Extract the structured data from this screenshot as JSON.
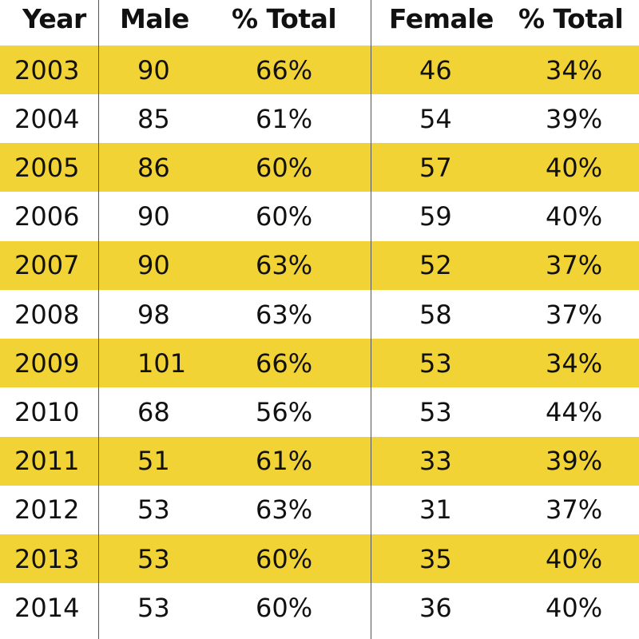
{
  "chart_data": {
    "type": "table",
    "columns": [
      "Year",
      "Male",
      "% Total",
      "Female",
      "% Total"
    ],
    "rows": [
      [
        "2003",
        "90",
        "66%",
        "46",
        "34%"
      ],
      [
        "2004",
        "85",
        "61%",
        "54",
        "39%"
      ],
      [
        "2005",
        "86",
        "60%",
        "57",
        "40%"
      ],
      [
        "2006",
        "90",
        "60%",
        "59",
        "40%"
      ],
      [
        "2007",
        "90",
        "63%",
        "52",
        "37%"
      ],
      [
        "2008",
        "98",
        "63%",
        "58",
        "37%"
      ],
      [
        "2009",
        "101",
        "66%",
        "53",
        "34%"
      ],
      [
        "2010",
        "68",
        "56%",
        "53",
        "44%"
      ],
      [
        "2011",
        "51",
        "61%",
        "33",
        "39%"
      ],
      [
        "2012",
        "53",
        "63%",
        "31",
        "37%"
      ],
      [
        "2013",
        "53",
        "60%",
        "35",
        "40%"
      ],
      [
        "2014",
        "53",
        "60%",
        "36",
        "40%"
      ]
    ],
    "band_color": "#f2d335",
    "text_color": "#111111",
    "divider_color": "#555555"
  }
}
